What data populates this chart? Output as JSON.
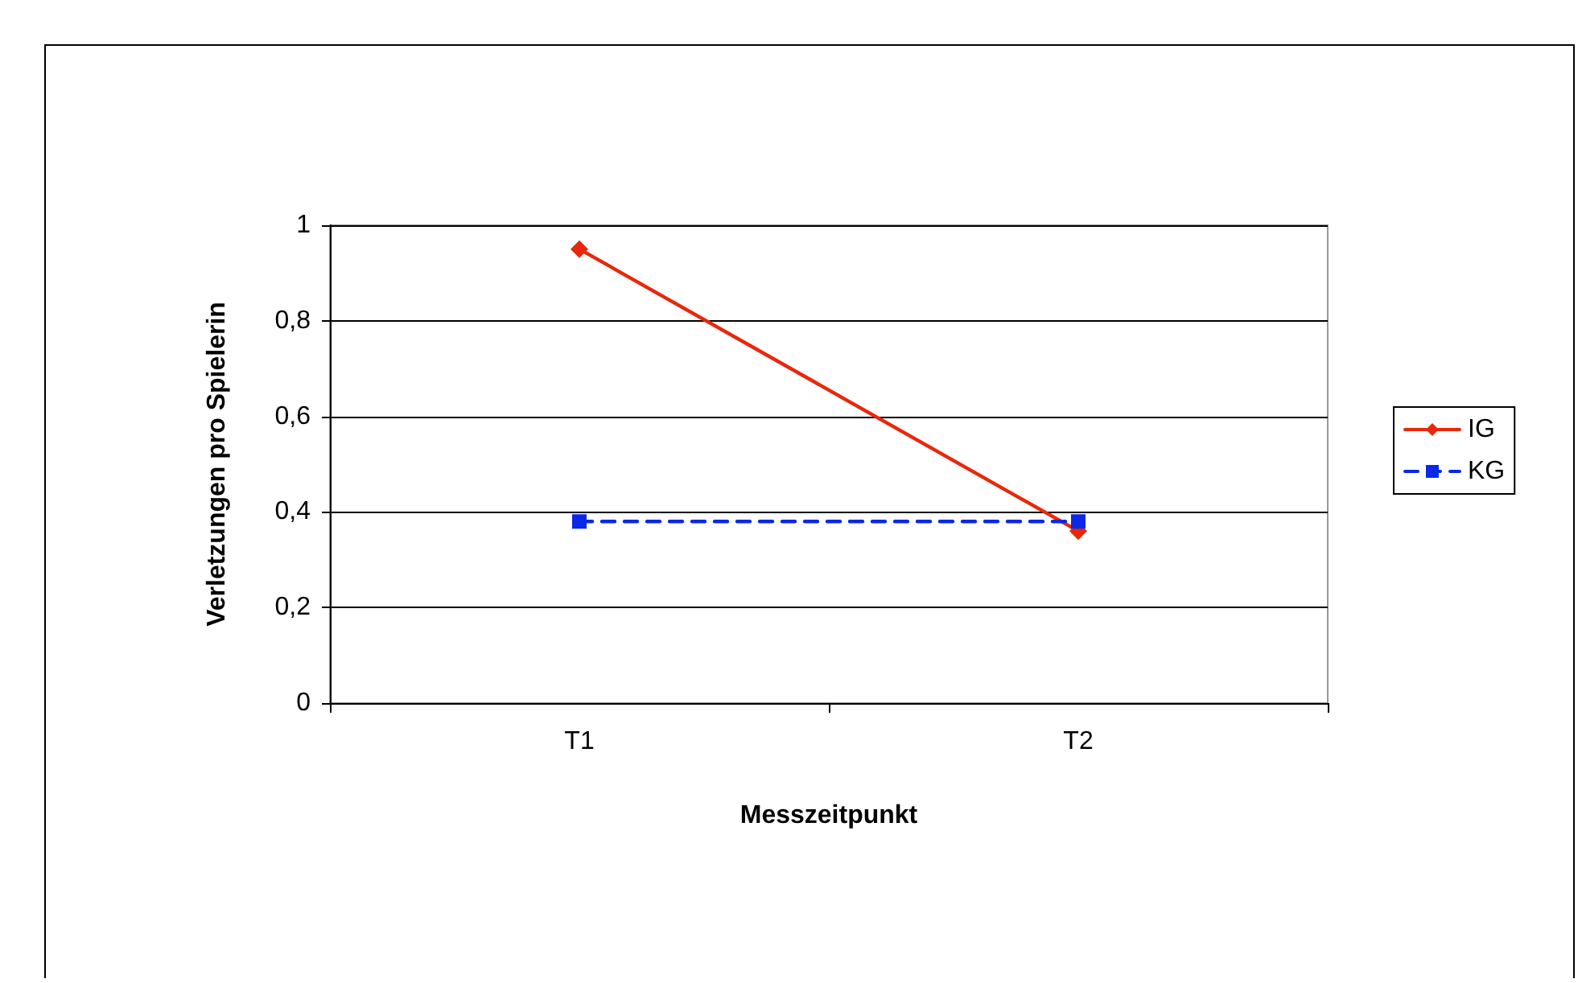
{
  "chart_data": {
    "type": "line",
    "xlabel": "Messzeitpunkt",
    "ylabel": "Verletzungen pro Spielerin",
    "categories": [
      "T1",
      "T2"
    ],
    "series": [
      {
        "name": "IG",
        "color": "#e8280c",
        "values": [
          0.95,
          0.36
        ],
        "marker": "diamond",
        "line_style": "solid"
      },
      {
        "name": "KG",
        "color": "#0a28e6",
        "values": [
          0.38,
          0.38
        ],
        "marker": "square",
        "line_style": "dashed"
      }
    ],
    "ylim": [
      0,
      1
    ],
    "yticks": [
      0,
      {
        "value": 0.2,
        "label": "0,2"
      },
      {
        "value": 0.4,
        "label": "0,4"
      },
      {
        "value": 0.6,
        "label": "0,6"
      },
      {
        "value": 0.8,
        "label": "0,8"
      },
      1
    ],
    "grid": "y",
    "legend": "right"
  }
}
